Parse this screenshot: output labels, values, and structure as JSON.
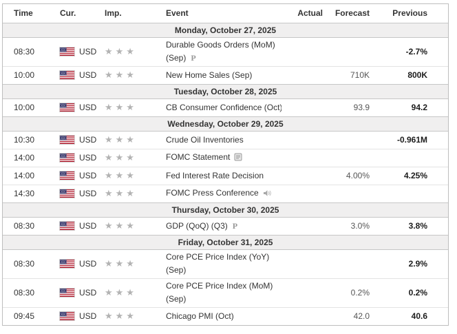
{
  "table": {
    "columns": {
      "time": "Time",
      "currency": "Cur.",
      "importance": "Imp.",
      "event": "Event",
      "actual": "Actual",
      "forecast": "Forecast",
      "previous": "Previous"
    },
    "sections": [
      {
        "date": "Monday, October 27, 2025",
        "rows": [
          {
            "time": "08:30",
            "currency": "USD",
            "flag": "us-flag-icon",
            "stars": 3,
            "event_lines": [
              "Durable Goods Orders (MoM)",
              "(Sep)"
            ],
            "marker": "preliminary",
            "actual": "",
            "forecast": "",
            "previous": "-2.7%"
          },
          {
            "time": "10:00",
            "currency": "USD",
            "flag": "us-flag-icon",
            "stars": 3,
            "event_lines": [
              "New Home Sales (Sep)"
            ],
            "marker": "",
            "actual": "",
            "forecast": "710K",
            "previous": "800K"
          }
        ]
      },
      {
        "date": "Tuesday, October 28, 2025",
        "rows": [
          {
            "time": "10:00",
            "currency": "USD",
            "flag": "us-flag-icon",
            "stars": 3,
            "event_lines": [
              "CB Consumer Confidence (Oct)"
            ],
            "marker": "",
            "actual": "",
            "forecast": "93.9",
            "previous": "94.2"
          }
        ]
      },
      {
        "date": "Wednesday, October 29, 2025",
        "rows": [
          {
            "time": "10:30",
            "currency": "USD",
            "flag": "us-flag-icon",
            "stars": 3,
            "event_lines": [
              "Crude Oil Inventories"
            ],
            "marker": "",
            "actual": "",
            "forecast": "",
            "previous": "-0.961M"
          },
          {
            "time": "14:00",
            "currency": "USD",
            "flag": "us-flag-icon",
            "stars": 3,
            "event_lines": [
              "FOMC Statement"
            ],
            "marker": "report",
            "actual": "",
            "forecast": "",
            "previous": ""
          },
          {
            "time": "14:00",
            "currency": "USD",
            "flag": "us-flag-icon",
            "stars": 3,
            "event_lines": [
              "Fed Interest Rate Decision"
            ],
            "marker": "",
            "actual": "",
            "forecast": "4.00%",
            "previous": "4.25%"
          },
          {
            "time": "14:30",
            "currency": "USD",
            "flag": "us-flag-icon",
            "stars": 3,
            "event_lines": [
              "FOMC Press Conference"
            ],
            "marker": "speech",
            "actual": "",
            "forecast": "",
            "previous": ""
          }
        ]
      },
      {
        "date": "Thursday, October 30, 2025",
        "rows": [
          {
            "time": "08:30",
            "currency": "USD",
            "flag": "us-flag-icon",
            "stars": 3,
            "event_lines": [
              "GDP (QoQ) (Q3)"
            ],
            "marker": "preliminary",
            "actual": "",
            "forecast": "3.0%",
            "previous": "3.8%"
          }
        ]
      },
      {
        "date": "Friday, October 31, 2025",
        "rows": [
          {
            "time": "08:30",
            "currency": "USD",
            "flag": "us-flag-icon",
            "stars": 3,
            "event_lines": [
              "Core PCE Price Index (YoY)",
              "(Sep)"
            ],
            "marker": "",
            "actual": "",
            "forecast": "",
            "previous": "2.9%"
          },
          {
            "time": "08:30",
            "currency": "USD",
            "flag": "us-flag-icon",
            "stars": 3,
            "event_lines": [
              "Core PCE Price Index (MoM)",
              "(Sep)"
            ],
            "marker": "",
            "actual": "",
            "forecast": "0.2%",
            "previous": "0.2%"
          },
          {
            "time": "09:45",
            "currency": "USD",
            "flag": "us-flag-icon",
            "stars": 3,
            "event_lines": [
              "Chicago PMI (Oct)"
            ],
            "marker": "",
            "actual": "",
            "forecast": "42.0",
            "previous": "40.6"
          }
        ]
      }
    ]
  },
  "icons": {
    "star_glyph": "★",
    "preliminary_label": "P",
    "preliminary_icon": "preliminary-icon",
    "report_icon": "report-icon",
    "speaker_icon": "speaker-icon",
    "flag_icon": "us-flag-icon"
  },
  "colors": {
    "day_band_bg": "#f0efef",
    "star_gray": "#b3b3b3",
    "row_border": "#e3e3e3",
    "band_border": "#c6c6c6",
    "flag_red": "#b22234",
    "flag_blue": "#3c3b6e"
  }
}
